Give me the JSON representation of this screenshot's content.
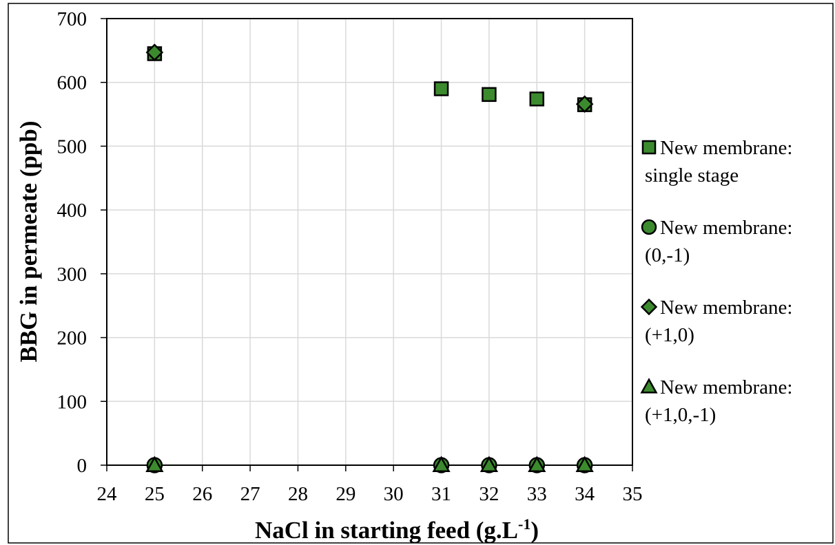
{
  "chart_data": {
    "type": "scatter",
    "xlabel": "NaCl in starting feed (g.L",
    "xlabel_sup": "-1",
    "xlabel_end": ")",
    "ylabel": "BBG in permeate (ppb)",
    "xlim": [
      24,
      35
    ],
    "ylim": [
      0,
      700
    ],
    "x_ticks": [
      24,
      25,
      26,
      27,
      28,
      29,
      30,
      31,
      32,
      33,
      34,
      35
    ],
    "y_ticks": [
      0,
      100,
      200,
      300,
      400,
      500,
      600,
      700
    ],
    "grid": true,
    "legend_position": "right",
    "marker_fill": "#3c8a2e",
    "marker_stroke": "#000000",
    "series": [
      {
        "name_line1": "New membrane:",
        "name_line2": "single stage",
        "marker": "square",
        "x": [
          25,
          31,
          32,
          33,
          34
        ],
        "y": [
          645,
          590,
          581,
          574,
          565
        ]
      },
      {
        "name_line1": "New membrane:",
        "name_line2": "(0,-1)",
        "marker": "circle",
        "x": [
          25,
          31,
          32,
          33,
          34
        ],
        "y": [
          0,
          0,
          0,
          0,
          0
        ]
      },
      {
        "name_line1": "New membrane:",
        "name_line2": "(+1,0)",
        "marker": "diamond",
        "x": [
          25,
          34
        ],
        "y": [
          647,
          566
        ]
      },
      {
        "name_line1": "New membrane:",
        "name_line2": "(+1,0,-1)",
        "marker": "triangle",
        "x": [
          25,
          31,
          32,
          33,
          34
        ],
        "y": [
          0,
          0,
          0,
          0,
          0
        ]
      }
    ]
  }
}
